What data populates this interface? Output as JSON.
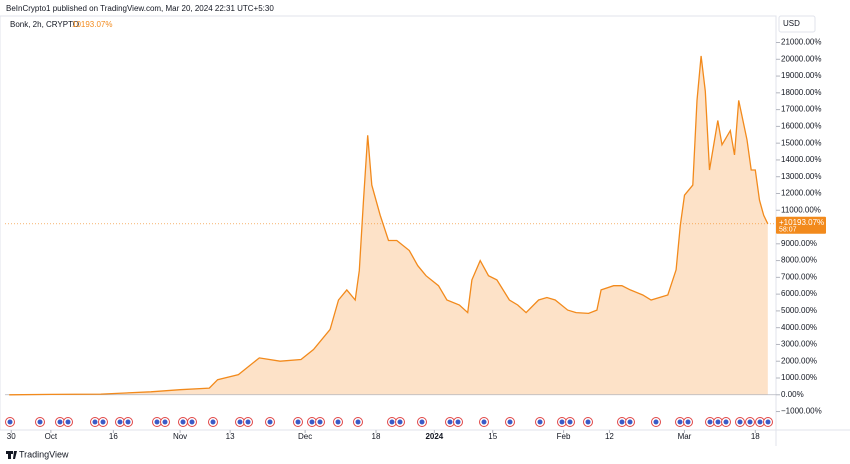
{
  "header": {
    "publisher": "BeInCrypto1 published on TradingView.com, Mar 20, 2024 22:31 UTC+5:30",
    "currency": "USD",
    "footer": "TradingView"
  },
  "chart_data": {
    "type": "area",
    "title": "Bonk, 2h, CRYPTO",
    "color": "#f28a1c",
    "fill": "#fde2c8",
    "x": [
      -10,
      0,
      12,
      24,
      31,
      38,
      40,
      45,
      50,
      55,
      60,
      63,
      67,
      69,
      71,
      73,
      74,
      75,
      76,
      77,
      79,
      81,
      83,
      86,
      88,
      90,
      93,
      95,
      98,
      100,
      101,
      103,
      105,
      107,
      110,
      112,
      114,
      117,
      119,
      121,
      124,
      126,
      129,
      131,
      132,
      135,
      137,
      139,
      142,
      144,
      148,
      150,
      151,
      152,
      154,
      155,
      156,
      157,
      158,
      160,
      161,
      163,
      164,
      165,
      167,
      168,
      169,
      170,
      171,
      172
    ],
    "values": [
      0,
      20,
      40,
      180,
      300,
      400,
      900,
      1200,
      2200,
      2000,
      2100,
      2700,
      3900,
      5650,
      6250,
      5650,
      7400,
      11600,
      15470,
      12500,
      10700,
      9200,
      9200,
      8600,
      7700,
      7100,
      6500,
      5650,
      5350,
      4900,
      6850,
      8000,
      7100,
      6850,
      5650,
      5350,
      4900,
      5650,
      5800,
      5650,
      5050,
      4900,
      4850,
      5050,
      6250,
      6500,
      6500,
      6250,
      5950,
      5650,
      5950,
      7450,
      10100,
      11900,
      12500,
      17550,
      20200,
      18100,
      13400,
      16350,
      14900,
      15750,
      14300,
      17550,
      15200,
      13400,
      13400,
      11600,
      10700,
      10193.07
    ],
    "last": {
      "value": 10193.07,
      "label": "+10193.07%",
      "header_label": "10193.07%",
      "countdown": "58:07"
    },
    "xlim": [
      -11,
      173
    ],
    "xticks": [
      {
        "value": -9.5,
        "label": "30"
      },
      {
        "value": 0,
        "label": "Oct"
      },
      {
        "value": 15,
        "label": "16"
      },
      {
        "value": 31,
        "label": "Nov"
      },
      {
        "value": 43,
        "label": "13"
      },
      {
        "value": 61,
        "label": "Dec"
      },
      {
        "value": 78,
        "label": "18"
      },
      {
        "value": 92,
        "label": "2024"
      },
      {
        "value": 106,
        "label": "15"
      },
      {
        "value": 123,
        "label": "Feb"
      },
      {
        "value": 134,
        "label": "12"
      },
      {
        "value": 152,
        "label": "Mar"
      },
      {
        "value": 169,
        "label": "18"
      }
    ],
    "ylim": [
      -2100,
      22700
    ],
    "yticks": [
      {
        "value": -1000,
        "label": "−1000.00%"
      },
      {
        "value": 0,
        "label": "0.00%"
      },
      {
        "value": 1000,
        "label": "1000.00%"
      },
      {
        "value": 2000,
        "label": "2000.00%"
      },
      {
        "value": 3000,
        "label": "3000.00%"
      },
      {
        "value": 4000,
        "label": "4000.00%"
      },
      {
        "value": 5000,
        "label": "5000.00%"
      },
      {
        "value": 6000,
        "label": "6000.00%"
      },
      {
        "value": 7000,
        "label": "7000.00%"
      },
      {
        "value": 8000,
        "label": "8000.00%"
      },
      {
        "value": 9000,
        "label": "9000.00%"
      },
      {
        "value": 10000,
        "label": "10000.00%"
      },
      {
        "value": 11000,
        "label": "11000.00%"
      },
      {
        "value": 12000,
        "label": "12000.00%"
      },
      {
        "value": 13000,
        "label": "13000.00%"
      },
      {
        "value": 14000,
        "label": "14000.00%"
      },
      {
        "value": 15000,
        "label": "15000.00%"
      },
      {
        "value": 16000,
        "label": "16000.00%"
      },
      {
        "value": 17000,
        "label": "17000.00%"
      },
      {
        "value": 18000,
        "label": "18000.00%"
      },
      {
        "value": 19000,
        "label": "19000.00%"
      },
      {
        "value": 20000,
        "label": "20000.00%"
      },
      {
        "value": 21000,
        "label": "21000.00%"
      }
    ]
  }
}
